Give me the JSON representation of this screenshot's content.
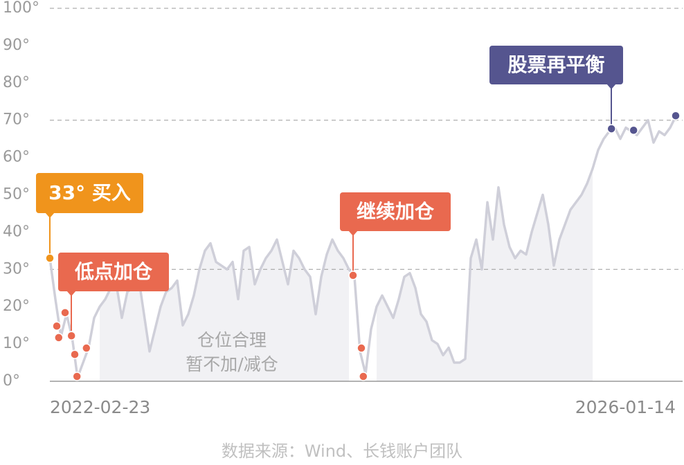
{
  "chart_data": {
    "type": "line",
    "categories": [
      "2022-02-23",
      null,
      null,
      null,
      null,
      null,
      null,
      null,
      null,
      null,
      null,
      null,
      null,
      null,
      null,
      null,
      null,
      null,
      null,
      null,
      null,
      null,
      null,
      null,
      null,
      null,
      null,
      null,
      null,
      null,
      null,
      null,
      null,
      null,
      null,
      null,
      null,
      null,
      null,
      null,
      null,
      null,
      null,
      null,
      null,
      null,
      null,
      null,
      null,
      null,
      null,
      null,
      null,
      null,
      null,
      null,
      null,
      null,
      null,
      null,
      null,
      null,
      null,
      null,
      null,
      null,
      null,
      null,
      null,
      null,
      null,
      null,
      null,
      null,
      null,
      null,
      null,
      null,
      null,
      null,
      null,
      null,
      null,
      null,
      null,
      null,
      null,
      null,
      null,
      null,
      null,
      null,
      null,
      null,
      null,
      null,
      null,
      null,
      null,
      null,
      null,
      null,
      null,
      null,
      null,
      null,
      null,
      null,
      null,
      null,
      null,
      null,
      null,
      "2026-01-14"
    ],
    "values": [
      33,
      22,
      12,
      18,
      12,
      1,
      5,
      9,
      17,
      20,
      22,
      25,
      26,
      17,
      24,
      25,
      28,
      18,
      8,
      14,
      20,
      24,
      25,
      27,
      15,
      18,
      23,
      30,
      35,
      37,
      32,
      31,
      30,
      32,
      22,
      35,
      36,
      26,
      30,
      33,
      35,
      38,
      32,
      26,
      35,
      33,
      30,
      28,
      18,
      28,
      34,
      38,
      35,
      33,
      30,
      28,
      8,
      2,
      14,
      20,
      23,
      20,
      17,
      22,
      28,
      29,
      25,
      18,
      16,
      11,
      10,
      7,
      9,
      5,
      5,
      6,
      33,
      38,
      30,
      48,
      38,
      52,
      42,
      36,
      33,
      35,
      34,
      40,
      45,
      50,
      42,
      31,
      38,
      42,
      46,
      48,
      50,
      53,
      57,
      62,
      65,
      67,
      68,
      65,
      68,
      67,
      66,
      68,
      70,
      64,
      67,
      66,
      68,
      71
    ],
    "color": "#cfcfd9",
    "ylim": [
      0,
      100
    ],
    "yticks": [
      {
        "value": 0,
        "label": "0°"
      },
      {
        "value": 10,
        "label": "10°"
      },
      {
        "value": 20,
        "label": "20°"
      },
      {
        "value": 30,
        "label": "30°"
      },
      {
        "value": 40,
        "label": "40°"
      },
      {
        "value": 50,
        "label": "50°"
      },
      {
        "value": 60,
        "label": "60°"
      },
      {
        "value": 70,
        "label": "70°"
      },
      {
        "value": 80,
        "label": "80°"
      },
      {
        "value": 90,
        "label": "90°"
      },
      {
        "value": 100,
        "label": "100°"
      }
    ],
    "dashed_lines": [
      30,
      70,
      100
    ],
    "shaded_ranges": [
      [
        9,
        54
      ],
      [
        59,
        98
      ]
    ],
    "shade_color": "#f1f1f4",
    "region_label": [
      "仓位合理",
      "暂不加/减仓"
    ],
    "markers": [
      {
        "x": 0,
        "value": 33,
        "color": "#f0941c"
      },
      {
        "x": 1.25,
        "value": 14.8,
        "color": "#e9694f"
      },
      {
        "x": 1.6,
        "value": 11.7,
        "color": "#e9694f"
      },
      {
        "x": 2.75,
        "value": 18.4,
        "color": "#e9694f"
      },
      {
        "x": 3.9,
        "value": 12.2,
        "color": "#e9694f"
      },
      {
        "x": 4.5,
        "value": 7.2,
        "color": "#e9694f"
      },
      {
        "x": 4.9,
        "value": 1.3,
        "color": "#e9694f"
      },
      {
        "x": 6.6,
        "value": 8.9,
        "color": "#e9694f"
      },
      {
        "x": 54.75,
        "value": 28.4,
        "color": "#e9694f"
      },
      {
        "x": 56.25,
        "value": 8.9,
        "color": "#e9694f"
      },
      {
        "x": 56.6,
        "value": 1.3,
        "color": "#e9694f"
      },
      {
        "x": 101.4,
        "value": 67.7,
        "color": "#55558f"
      },
      {
        "x": 105.4,
        "value": 67.3,
        "color": "#55558f"
      },
      {
        "x": 113,
        "value": 71.2,
        "color": "#55558f"
      }
    ],
    "annotations": [
      {
        "text": "33° 买入",
        "color": "#f0941c"
      },
      {
        "text": "低点加仓",
        "color": "#e9694f"
      },
      {
        "text": "继续加仓",
        "color": "#e9694f"
      },
      {
        "text": "股票再平衡",
        "color": "#55558f"
      }
    ],
    "source": "数据来源：Wind、长钱账户团队"
  }
}
